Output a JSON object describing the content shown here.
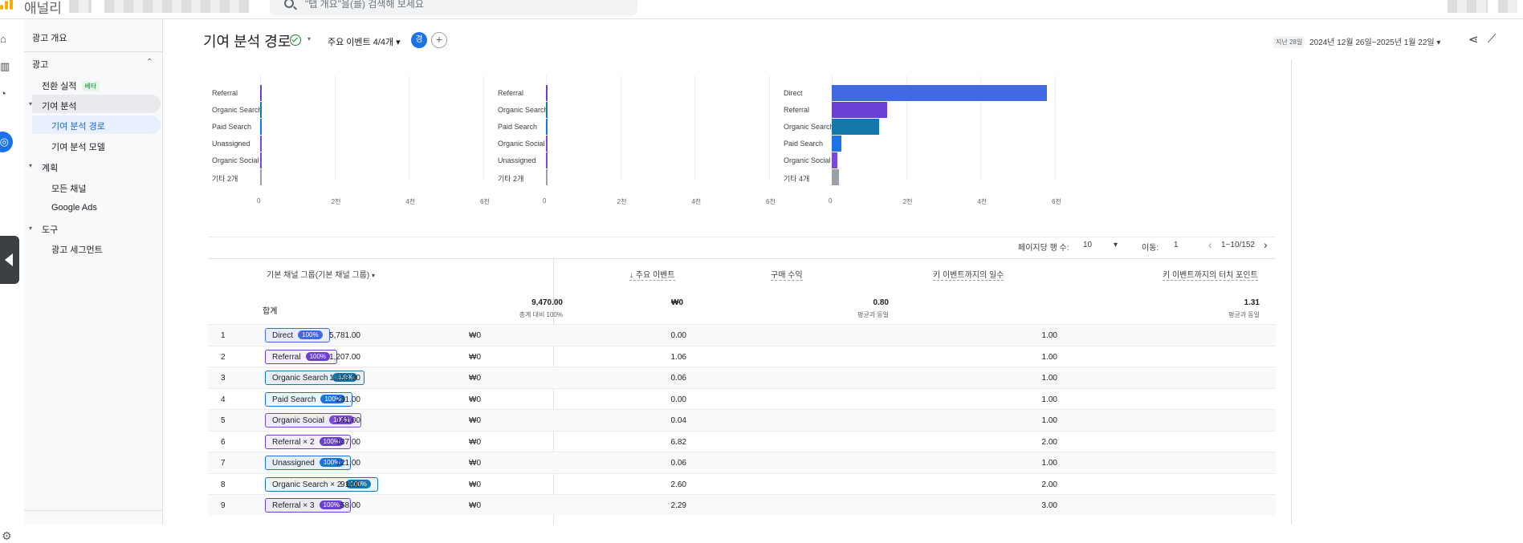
{
  "header": {
    "app_name": "애널리",
    "search_placeholder": "\"탭 개요\"을(를) 검색해 보세요"
  },
  "sidebar": {
    "overview": "광고 개요",
    "section_ads": "광고",
    "conversions": "전환 실적",
    "beta": "베타",
    "attribution": "기여 분석",
    "attribution_paths": "기여 분석 경로",
    "attribution_models": "기여 분석 모델",
    "planning": "계획",
    "all_channels": "모든 채널",
    "google_ads": "Google Ads",
    "tools": "도구",
    "ad_segments": "광고 세그먼트"
  },
  "toolbar": {
    "title": "기여 분석 경로",
    "events": "주요 이벤트 4/4개",
    "avatar": "경",
    "plus": "+",
    "range_tag": "지난 28일",
    "range": "2024년 12월 26일~2025년 1월 22일"
  },
  "chart_data": [
    {
      "type": "bar",
      "categories": [
        "Referral",
        "Organic Search",
        "Paid Search",
        "Unassigned",
        "Organic Social",
        "기타 2개"
      ],
      "values": [
        40,
        35,
        20,
        10,
        8,
        5
      ],
      "ticks": [
        "0",
        "2천",
        "4천",
        "6천"
      ],
      "xlim": [
        0,
        6000
      ]
    },
    {
      "type": "bar",
      "categories": [
        "Referral",
        "Organic Search",
        "Paid Search",
        "Organic Social",
        "Unassigned",
        "기타 2개"
      ],
      "values": [
        40,
        35,
        20,
        10,
        8,
        5
      ],
      "ticks": [
        "0",
        "2천",
        "4천",
        "6천"
      ],
      "xlim": [
        0,
        6000
      ]
    },
    {
      "type": "bar",
      "categories": [
        "Direct",
        "Referral",
        "Organic Search",
        "Paid Search",
        "Organic Social",
        "기타 4개"
      ],
      "values": [
        5781,
        1495,
        1270,
        265,
        150,
        190
      ],
      "ticks": [
        "0",
        "2천",
        "4천",
        "6천"
      ],
      "xlim": [
        0,
        6000
      ],
      "colors": [
        "#4169e1",
        "#6a3fd4",
        "#1479a8",
        "#1a73e8",
        "#7b47d6",
        "#9aa0a6"
      ]
    }
  ],
  "pager": {
    "rows_label": "페이지당 행 수:",
    "rows_value": "10",
    "goto_label": "이동:",
    "goto_value": "1",
    "range": "1~10/152"
  },
  "table": {
    "headers": {
      "dim": "기본 채널 그룹(기본 채널 그룹)",
      "events": "주요 이벤트",
      "revenue": "구매 수익",
      "days": "키 이벤트까지의 일수",
      "touchpoints": "키 이벤트까지의 터치 포인트"
    },
    "totals": {
      "label": "합계",
      "events": "9,470.00",
      "events_sub": "총계 대비 100%",
      "revenue": "₩0",
      "days": "0.80",
      "days_sub": "평균과 동일",
      "touchpoints": "1.31",
      "touchpoints_sub": "평균과 동일"
    },
    "rows": [
      {
        "n": "1",
        "channel": "Direct",
        "pct": "100%",
        "events": "5,781.00",
        "revenue": "₩0",
        "days": "0.00",
        "tp": "1.00",
        "color": "#4169e1"
      },
      {
        "n": "2",
        "channel": "Referral",
        "pct": "100%",
        "events": "1,207.00",
        "revenue": "₩0",
        "days": "1.06",
        "tp": "1.00",
        "color": "#6a3fd4"
      },
      {
        "n": "3",
        "channel": "Organic Search",
        "pct": "100%",
        "events": "1,153.00",
        "revenue": "₩0",
        "days": "0.06",
        "tp": "1.00",
        "color": "#1479a8"
      },
      {
        "n": "4",
        "channel": "Paid Search",
        "pct": "100%",
        "events": "231.00",
        "revenue": "₩0",
        "days": "0.00",
        "tp": "1.00",
        "color": "#1a73e8"
      },
      {
        "n": "5",
        "channel": "Organic Social",
        "pct": "100%",
        "events": "141.00",
        "revenue": "₩0",
        "days": "0.04",
        "tp": "1.00",
        "color": "#7b47d6"
      },
      {
        "n": "6",
        "channel": "Referral × 2",
        "pct": "100%",
        "events": "137.00",
        "revenue": "₩0",
        "days": "6.82",
        "tp": "2.00",
        "color": "#6a3fd4"
      },
      {
        "n": "7",
        "channel": "Unassigned",
        "pct": "100%",
        "events": "121.00",
        "revenue": "₩0",
        "days": "0.06",
        "tp": "1.00",
        "color": "#1a73e8"
      },
      {
        "n": "8",
        "channel": "Organic Search × 2",
        "pct": "100%",
        "events": "91.00",
        "revenue": "₩0",
        "days": "2.60",
        "tp": "2.00",
        "color": "#1479a8"
      },
      {
        "n": "9",
        "channel": "Referral × 3",
        "pct": "100%",
        "events": "58.00",
        "revenue": "₩0",
        "days": "2.29",
        "tp": "3.00",
        "color": "#6a3fd4"
      }
    ]
  }
}
